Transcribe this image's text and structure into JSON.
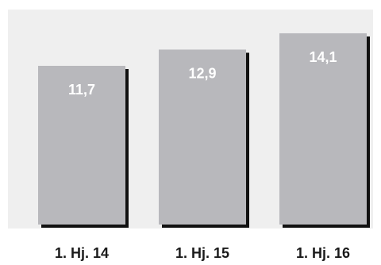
{
  "chart_data": {
    "type": "bar",
    "categories": [
      "1. Hj. 14",
      "1. Hj. 15",
      "1. Hj. 16"
    ],
    "values": [
      11.7,
      12.9,
      14.1
    ],
    "value_labels": [
      "11,7",
      "12,9",
      "14,1"
    ],
    "title": "",
    "xlabel": "",
    "ylabel": "",
    "ylim": [
      0,
      14.8
    ],
    "grid": false,
    "legend": "none"
  },
  "colors": {
    "background_panel": "#efefef",
    "bar_fill": "#b8b8bc",
    "bar_shadow": "#111111",
    "value_label": "#ffffff",
    "category_label": "#1a1a1a"
  }
}
